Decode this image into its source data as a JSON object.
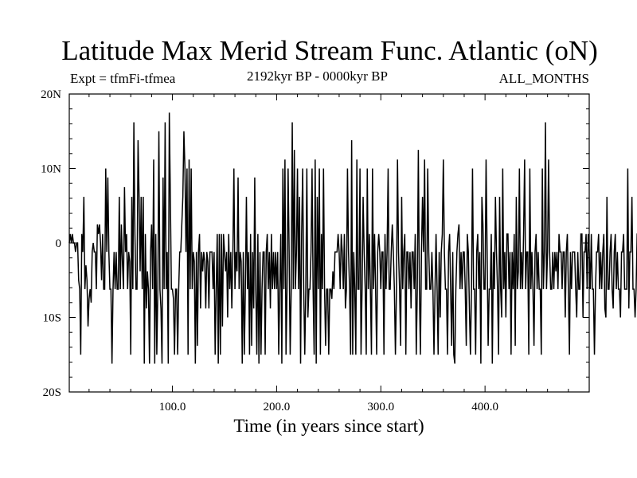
{
  "header": {
    "title": "Latitude Max Merid Stream Func. Atlantic (oN)",
    "expt": "Expt = tfmFi-tfmea",
    "period": "2192kyr BP - 0000kyr BP",
    "months": "ALL_MONTHS"
  },
  "chart_data": {
    "type": "line",
    "title": "Latitude Max Merid Stream Func. Atlantic (oN)",
    "xlabel": "Time (in years since start)",
    "ylabel": "",
    "xlim": [
      1,
      500
    ],
    "ylim": [
      -20,
      20
    ],
    "x_ticks": [
      100,
      200,
      300,
      400
    ],
    "x_tick_labels": [
      "100.0",
      "200.0",
      "300.0",
      "400.0"
    ],
    "y_ticks": [
      20,
      10,
      0,
      -10,
      -20
    ],
    "y_tick_labels": [
      "20N",
      "10N",
      "0",
      "10S",
      "20S"
    ],
    "grid": false,
    "series": [
      {
        "x_start": 1,
        "x_step": 1,
        "values": [
          0,
          1.2,
          0,
          1.2,
          0,
          0,
          -1.2,
          0,
          0,
          -5,
          -6.2,
          -15,
          1.2,
          -1.2,
          6.2,
          -6.2,
          -3,
          -5,
          -11.2,
          -7.5,
          -6.2,
          -8,
          -1.2,
          0,
          -1.2,
          -1.2,
          -6.2,
          2.5,
          1.2,
          2.5,
          0,
          -5,
          1.2,
          -6.2,
          -6.2,
          10,
          -1.2,
          8.8,
          -1.2,
          -6.2,
          -6.2,
          -16.2,
          -6.2,
          -1.2,
          -6.2,
          -1.2,
          -6.2,
          -6.2,
          6.2,
          -6.2,
          2.5,
          -2.5,
          -6.2,
          7.5,
          -1.2,
          1.2,
          -6.2,
          -1.2,
          -2.5,
          -15,
          6.2,
          -6.2,
          16.2,
          1.2,
          -6.2,
          -6.2,
          13.8,
          6.2,
          -3.8,
          6.2,
          -6.2,
          6.2,
          -16.2,
          1.2,
          -8.8,
          -3.8,
          -6.2,
          -16.2,
          -1.2,
          2.5,
          -6.2,
          11.2,
          -16.2,
          1.2,
          -15,
          -6.2,
          15,
          -6.2,
          -8.8,
          -16.2,
          8.8,
          -6.2,
          16.2,
          -6.2,
          -1.2,
          -16.2,
          17.5,
          6.2,
          -6.2,
          -6.2,
          -7.5,
          -15,
          -6.2,
          -6.2,
          -15,
          -6.2,
          -1.2,
          -1.2,
          2.5,
          6.2,
          15,
          10,
          -1.2,
          10,
          -15,
          11.2,
          -6.2,
          10,
          -6.2,
          -1.2,
          -2.5,
          -16.2,
          -1.2,
          -13.8,
          -1.2,
          1.2,
          -8.8,
          -1.2,
          -3.8,
          -1.2,
          -2.5,
          -8.8,
          -1.2,
          -2.5,
          -8.8,
          -1.2,
          -1.2,
          -1.2,
          -6.2,
          -1.2,
          -15,
          -6.2,
          1.2,
          -16.2,
          1.2,
          -15,
          1.2,
          -11.2,
          1.2,
          -1.2,
          -3.8,
          -1.2,
          -10,
          1.2,
          -6.2,
          -1.2,
          -8.8,
          -1.2,
          10,
          -6.2,
          -1.2,
          -3.8,
          8.8,
          -6.2,
          -1.2,
          -2.5,
          -16.2,
          -1.2,
          -15,
          -6.2,
          6.2,
          -6.2,
          -1.2,
          -15,
          1.2,
          -13.8,
          -1.2,
          -8.8,
          8.8,
          -6.2,
          -15,
          1.2,
          -16.2,
          -1.2,
          -15,
          -6.2,
          -1.2,
          -1.2,
          -15,
          -1.2,
          1.2,
          -6.2,
          -1.2,
          -8.8,
          1.2,
          -6.2,
          -1.2,
          -6.2,
          -1.2,
          -6.2,
          -1.2,
          -15,
          -6.2,
          1.2,
          -16.2,
          10,
          -6.2,
          11.2,
          -15,
          -6.2,
          10,
          -1.2,
          -15,
          -6.2,
          16.2,
          -6.2,
          12.5,
          -6.2,
          -1.2,
          10,
          -6.2,
          6.2,
          -16.2,
          1.2,
          10,
          -6.2,
          -15,
          -6.2,
          10,
          -10,
          -6.2,
          -6.2,
          -1.2,
          10,
          -6.2,
          -15,
          11.2,
          -16.2,
          6.2,
          -6.2,
          10,
          -15,
          1.2,
          -6.2,
          10,
          -6.2,
          -13.8,
          -6.2,
          -6.2,
          -15,
          -6.2,
          -6.2,
          -7.5,
          -3.8,
          -6.2,
          -1.2,
          -1.2,
          -1.2,
          1.2,
          -1.2,
          -6.2,
          1.2,
          -1.2,
          -6.2,
          1.2,
          -8.8,
          -6.2,
          10,
          -1.2,
          -6.2,
          -15,
          13.8,
          -15,
          -1.2,
          -6.2,
          -15,
          11.2,
          -6.2,
          -6.2,
          10,
          -15,
          -6.2,
          6.2,
          -1.2,
          -6.2,
          -15,
          10,
          -6.2,
          1.2,
          -6.2,
          -15,
          10,
          -6.2,
          1.2,
          -6.2,
          -15,
          -1.2,
          1.2,
          -1.2,
          -6.2,
          -1.2,
          -1.2,
          -15,
          1.2,
          -6.2,
          -1.2,
          10,
          -6.2,
          -6.2,
          -1.2,
          2.5,
          -1.2,
          -6.2,
          -15,
          -6.2,
          11.2,
          -1.2,
          -6.2,
          -13.8,
          6.2,
          -6.2,
          -1.2,
          1.2,
          -15,
          -1.2,
          -1.2,
          -6.2,
          -1.2,
          -8.8,
          -1.2,
          -1.2,
          -6.2,
          1.2,
          -15,
          -6.2,
          12.5,
          -6.2,
          -15,
          -1.2,
          6.2,
          -1.2,
          11.2,
          -6.2,
          -6.2,
          10,
          -1.2,
          -6.2,
          -6.2,
          -1.2,
          -6.2,
          -15,
          -6.2,
          1.2,
          -6.2,
          -15,
          -1.2,
          -10,
          -1.2,
          1.2,
          11.2,
          -1.2,
          -6.2,
          -6.2,
          -15,
          -1.2,
          1.2,
          -6.2,
          -13.8,
          -1.2,
          -15,
          -16.2,
          -6.2,
          -1.2,
          1.2,
          2.5,
          -6.2,
          -1.2,
          -6.2,
          -1.2,
          -1.2,
          -6.2,
          -13.8,
          1.2,
          -1.2,
          -8.8,
          -15,
          -6.2,
          10,
          -6.2,
          -6.2,
          -15,
          -1.2,
          1.2,
          -6.2,
          -1.2,
          -16.2,
          6.2,
          2.5,
          -6.2,
          -6.2,
          11.2,
          -1.2,
          -13.8,
          -6.2,
          -6.2,
          1.2,
          -16.2,
          -1.2,
          -6.2,
          6.2,
          -1.2,
          -6.2,
          -15,
          6.2,
          -6.2,
          -10,
          10,
          -6.2,
          -1.2,
          -10,
          1.2,
          1.2,
          -6.2,
          -1.2,
          -15,
          -1.2,
          -6.2,
          1.2,
          -13.8,
          6.2,
          -6.2,
          -3.8,
          10,
          -6.2,
          -1.2,
          -6.2,
          1.2,
          11.2,
          -6.2,
          -1.2,
          -1.2,
          -15,
          10,
          -6.2,
          -1.2,
          -6.2,
          -13.8,
          -1.2,
          1.2,
          -6.2,
          -1.2,
          -6.2,
          -6.2,
          -15,
          10,
          -6.2,
          -1.2,
          16.2,
          -6.2,
          -1.2,
          11.2,
          -1.2,
          -6.2,
          -6.2,
          -1.2,
          -6.2,
          -1.2,
          -3.8,
          -1.2,
          -6.2,
          1.2,
          -1.2,
          -1.2,
          -6.2,
          -1.2,
          -1.2,
          -10,
          -1.2,
          1.2,
          -6.2,
          -15,
          -1.2,
          -6.2,
          -1.2,
          -1.2,
          -1.2,
          -6.2,
          -10,
          -1.2,
          -6.2,
          -6.2,
          1.2,
          1.2,
          -10,
          -1.2,
          -1.2,
          1.2,
          -6.2,
          1.2,
          -1.2,
          -6.2,
          1.2,
          -6.2,
          -6.2,
          -15,
          -6.2,
          -1.2,
          -1.2,
          1.2,
          -6.2,
          -1.2,
          -6.2,
          -1.2,
          1.2,
          -8.8,
          -10,
          6.2,
          -6.2,
          -6.2,
          -1.2,
          1.2,
          -6.2,
          -8.8,
          -1.2,
          1.2,
          -6.2,
          -1.2,
          -6.2,
          -6.2,
          -10,
          -1.2,
          -1.2,
          1.2,
          -6.2,
          -6.2,
          -6.2,
          10,
          -8.8,
          -1.2,
          -1.2,
          6.2,
          -6.2,
          -6.2,
          -10,
          -6.2,
          1.2,
          1.2,
          -1.2,
          1.2,
          6.2,
          -1.2,
          -6.2,
          -5,
          -1.2,
          -1.2,
          -6.2,
          -1.2,
          -6.2,
          -5
        ]
      }
    ]
  }
}
